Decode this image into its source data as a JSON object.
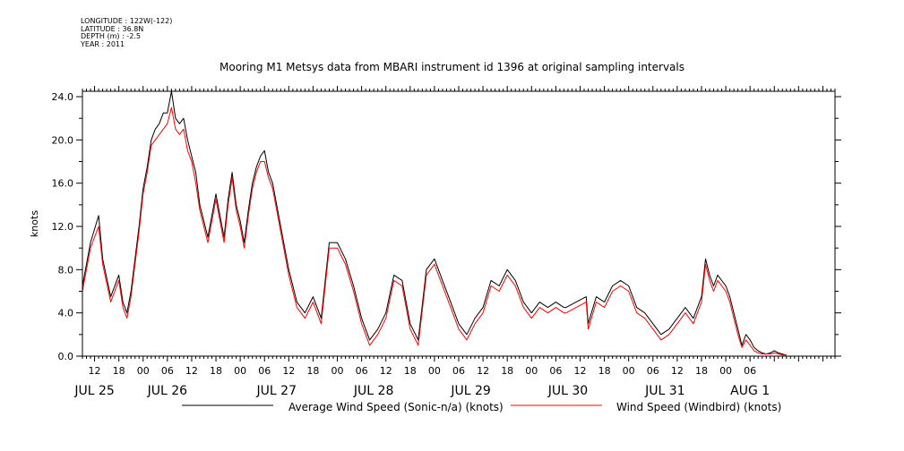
{
  "meta": {
    "longitude": "LONGITUDE : 122W(-122)",
    "latitude": "LATITUDE : 36.8N",
    "depth": "DEPTH (m) : -2.5",
    "year": "YEAR : 2011"
  },
  "colors": {
    "series_average": "#000000",
    "series_windbird": "#ff0000"
  },
  "chart_data": {
    "type": "line",
    "title": "Mooring M1 Metsys data from MBARI instrument id 1396 at original sampling intervals",
    "ylabel": "knots",
    "xlabel": "",
    "ylim": [
      0,
      24.5
    ],
    "xlim": [
      "2011-07-24T09:00",
      "2011-08-01T03:00"
    ],
    "y_ticks": [
      "0.0",
      "4.0",
      "8.0",
      "12.0",
      "16.0",
      "20.0",
      "24.0"
    ],
    "hour_ticks": [
      {
        "label": "12",
        "x": "2011-07-24T12:00"
      },
      {
        "label": "18",
        "x": "2011-07-24T18:00"
      },
      {
        "label": "00",
        "x": "2011-07-25T00:00"
      },
      {
        "label": "06",
        "x": "2011-07-25T06:00"
      },
      {
        "label": "12",
        "x": "2011-07-25T12:00"
      },
      {
        "label": "18",
        "x": "2011-07-25T18:00"
      },
      {
        "label": "00",
        "x": "2011-07-26T00:00"
      },
      {
        "label": "06",
        "x": "2011-07-26T06:00"
      },
      {
        "label": "12",
        "x": "2011-07-26T12:00"
      },
      {
        "label": "18",
        "x": "2011-07-26T18:00"
      },
      {
        "label": "00",
        "x": "2011-07-27T00:00"
      },
      {
        "label": "06",
        "x": "2011-07-27T06:00"
      },
      {
        "label": "12",
        "x": "2011-07-27T12:00"
      },
      {
        "label": "18",
        "x": "2011-07-27T18:00"
      },
      {
        "label": "00",
        "x": "2011-07-28T00:00"
      },
      {
        "label": "06",
        "x": "2011-07-28T06:00"
      },
      {
        "label": "12",
        "x": "2011-07-28T12:00"
      },
      {
        "label": "18",
        "x": "2011-07-28T18:00"
      },
      {
        "label": "00",
        "x": "2011-07-29T00:00"
      },
      {
        "label": "06",
        "x": "2011-07-29T06:00"
      },
      {
        "label": "12",
        "x": "2011-07-29T12:00"
      },
      {
        "label": "18",
        "x": "2011-07-29T18:00"
      },
      {
        "label": "00",
        "x": "2011-07-30T00:00"
      },
      {
        "label": "06",
        "x": "2011-07-30T06:00"
      },
      {
        "label": "12",
        "x": "2011-07-30T12:00"
      },
      {
        "label": "18",
        "x": "2011-07-30T18:00"
      },
      {
        "label": "00",
        "x": "2011-07-31T00:00"
      },
      {
        "label": "06",
        "x": "2011-07-31T06:00"
      }
    ],
    "date_labels": [
      {
        "label": "JUL 25",
        "x": "2011-07-24T12:00"
      },
      {
        "label": "JUL 26",
        "x": "2011-07-25T06:00"
      },
      {
        "label": "JUL 27",
        "x": "2011-07-26T09:00"
      },
      {
        "label": "JUL 28",
        "x": "2011-07-27T09:00"
      },
      {
        "label": "JUL 29",
        "x": "2011-07-28T09:00"
      },
      {
        "label": "JUL 30",
        "x": "2011-07-29T09:00"
      },
      {
        "label": "JUL 31",
        "x": "2011-07-30T09:00"
      },
      {
        "label": "AUG  1",
        "x": "2011-07-31T06:00"
      }
    ],
    "series": [
      {
        "name": "Average Wind Speed (Sonic-n/a) (knots)",
        "color": "#000000",
        "x": [
          "2011-07-24T09:00",
          "2011-07-24T11:00",
          "2011-07-24T13:00",
          "2011-07-24T14:00",
          "2011-07-24T16:00",
          "2011-07-24T18:00",
          "2011-07-24T19:00",
          "2011-07-24T20:00",
          "2011-07-24T21:00",
          "2011-07-24T22:00",
          "2011-07-24T23:00",
          "2011-07-25T00:00",
          "2011-07-25T01:00",
          "2011-07-25T02:00",
          "2011-07-25T03:00",
          "2011-07-25T04:00",
          "2011-07-25T05:00",
          "2011-07-25T06:00",
          "2011-07-25T07:00",
          "2011-07-25T08:00",
          "2011-07-25T09:00",
          "2011-07-25T10:00",
          "2011-07-25T11:00",
          "2011-07-25T12:00",
          "2011-07-25T13:00",
          "2011-07-25T14:00",
          "2011-07-25T16:00",
          "2011-07-25T18:00",
          "2011-07-25T19:00",
          "2011-07-25T20:00",
          "2011-07-25T21:00",
          "2011-07-25T22:00",
          "2011-07-25T23:00",
          "2011-07-26T00:00",
          "2011-07-26T01:00",
          "2011-07-26T02:00",
          "2011-07-26T03:00",
          "2011-07-26T04:00",
          "2011-07-26T05:00",
          "2011-07-26T06:00",
          "2011-07-26T07:00",
          "2011-07-26T08:00",
          "2011-07-26T10:00",
          "2011-07-26T12:00",
          "2011-07-26T14:00",
          "2011-07-26T16:00",
          "2011-07-26T18:00",
          "2011-07-26T20:00",
          "2011-07-26T22:00",
          "2011-07-27T00:00",
          "2011-07-27T02:00",
          "2011-07-27T04:00",
          "2011-07-27T06:00",
          "2011-07-27T08:00",
          "2011-07-27T10:00",
          "2011-07-27T12:00",
          "2011-07-27T14:00",
          "2011-07-27T16:00",
          "2011-07-27T18:00",
          "2011-07-27T20:00",
          "2011-07-27T22:00",
          "2011-07-28T00:00",
          "2011-07-28T02:00",
          "2011-07-28T04:00",
          "2011-07-28T06:00",
          "2011-07-28T08:00",
          "2011-07-28T10:00",
          "2011-07-28T12:00",
          "2011-07-28T14:00",
          "2011-07-28T16:00",
          "2011-07-28T18:00",
          "2011-07-28T20:00",
          "2011-07-28T22:00",
          "2011-07-29T00:00",
          "2011-07-29T02:00",
          "2011-07-29T04:00",
          "2011-07-29T06:00",
          "2011-07-29T08:00",
          "2011-07-29T08:30",
          "2011-07-29T13:30",
          "2011-07-29T14:00",
          "2011-07-29T16:00",
          "2011-07-29T18:00",
          "2011-07-29T20:00",
          "2011-07-29T22:00",
          "2011-07-30T00:00",
          "2011-07-30T02:00",
          "2011-07-30T04:00",
          "2011-07-30T06:00",
          "2011-07-30T08:00",
          "2011-07-30T10:00",
          "2011-07-30T12:00",
          "2011-07-30T14:00",
          "2011-07-30T16:00",
          "2011-07-30T18:00",
          "2011-07-30T19:00",
          "2011-07-30T20:00",
          "2011-07-30T21:00",
          "2011-07-30T22:00",
          "2011-07-31T00:00",
          "2011-07-31T01:00",
          "2011-07-31T02:00",
          "2011-07-31T03:00",
          "2011-07-31T04:00",
          "2011-07-31T05:00",
          "2011-07-31T06:00",
          "2011-07-31T07:00",
          "2011-07-31T08:00",
          "2011-07-31T09:00",
          "2011-07-31T10:00",
          "2011-07-31T11:00",
          "2011-07-31T12:00",
          "2011-07-31T13:00",
          "2011-07-31T14:00",
          "2011-07-31T15:00"
        ],
        "values": [
          6.5,
          10.5,
          13.0,
          9.0,
          5.5,
          7.5,
          5.0,
          4.0,
          6.0,
          9.0,
          12.0,
          15.5,
          17.5,
          20.0,
          21.0,
          21.5,
          22.5,
          22.5,
          24.5,
          22.0,
          21.5,
          22.0,
          20.0,
          18.5,
          17.0,
          14.0,
          11.0,
          15.0,
          13.0,
          11.0,
          14.5,
          17.0,
          14.0,
          12.5,
          10.5,
          13.5,
          16.0,
          17.5,
          18.5,
          19.0,
          17.0,
          16.0,
          12.0,
          8.0,
          5.0,
          4.0,
          5.5,
          3.5,
          10.5,
          10.5,
          9.0,
          6.5,
          3.5,
          1.5,
          2.5,
          4.0,
          7.5,
          7.0,
          3.0,
          1.5,
          8.0,
          9.0,
          7.0,
          5.0,
          3.0,
          2.0,
          3.5,
          4.5,
          7.0,
          6.5,
          8.0,
          7.0,
          5.0,
          4.0,
          5.0,
          4.5,
          5.0,
          4.5,
          4.5,
          5.5,
          3.0,
          5.5,
          5.0,
          6.5,
          7.0,
          6.5,
          4.5,
          4.0,
          3.0,
          2.0,
          2.5,
          3.5,
          4.5,
          3.5,
          5.5,
          9.0,
          7.5,
          6.5,
          7.5,
          6.5,
          5.5,
          4.0,
          2.5,
          1.0,
          2.0,
          1.5,
          0.8,
          0.5,
          0.3,
          0.2,
          0.3,
          0.5,
          0.3,
          0.2,
          0.1
        ]
      },
      {
        "name": "Wind Speed (Windbird) (knots)",
        "color": "#ff0000",
        "x": [
          "2011-07-24T09:00",
          "2011-07-24T11:00",
          "2011-07-24T13:00",
          "2011-07-24T14:00",
          "2011-07-24T16:00",
          "2011-07-24T18:00",
          "2011-07-24T19:00",
          "2011-07-24T20:00",
          "2011-07-24T21:00",
          "2011-07-24T22:00",
          "2011-07-24T23:00",
          "2011-07-25T00:00",
          "2011-07-25T01:00",
          "2011-07-25T02:00",
          "2011-07-25T03:00",
          "2011-07-25T04:00",
          "2011-07-25T05:00",
          "2011-07-25T06:00",
          "2011-07-25T07:00",
          "2011-07-25T08:00",
          "2011-07-25T09:00",
          "2011-07-25T10:00",
          "2011-07-25T11:00",
          "2011-07-25T12:00",
          "2011-07-25T13:00",
          "2011-07-25T14:00",
          "2011-07-25T16:00",
          "2011-07-25T18:00",
          "2011-07-25T19:00",
          "2011-07-25T20:00",
          "2011-07-25T21:00",
          "2011-07-25T22:00",
          "2011-07-25T23:00",
          "2011-07-26T00:00",
          "2011-07-26T01:00",
          "2011-07-26T02:00",
          "2011-07-26T03:00",
          "2011-07-26T04:00",
          "2011-07-26T05:00",
          "2011-07-26T06:00",
          "2011-07-26T07:00",
          "2011-07-26T08:00",
          "2011-07-26T10:00",
          "2011-07-26T12:00",
          "2011-07-26T14:00",
          "2011-07-26T16:00",
          "2011-07-26T18:00",
          "2011-07-26T20:00",
          "2011-07-26T22:00",
          "2011-07-27T00:00",
          "2011-07-27T02:00",
          "2011-07-27T04:00",
          "2011-07-27T06:00",
          "2011-07-27T08:00",
          "2011-07-27T10:00",
          "2011-07-27T12:00",
          "2011-07-27T14:00",
          "2011-07-27T16:00",
          "2011-07-27T18:00",
          "2011-07-27T20:00",
          "2011-07-27T22:00",
          "2011-07-28T00:00",
          "2011-07-28T02:00",
          "2011-07-28T04:00",
          "2011-07-28T06:00",
          "2011-07-28T08:00",
          "2011-07-28T10:00",
          "2011-07-28T12:00",
          "2011-07-28T14:00",
          "2011-07-28T16:00",
          "2011-07-28T18:00",
          "2011-07-28T20:00",
          "2011-07-28T22:00",
          "2011-07-29T00:00",
          "2011-07-29T02:00",
          "2011-07-29T04:00",
          "2011-07-29T06:00",
          "2011-07-29T08:00",
          "2011-07-29T08:30",
          "2011-07-29T13:30",
          "2011-07-29T14:00",
          "2011-07-29T16:00",
          "2011-07-29T18:00",
          "2011-07-29T20:00",
          "2011-07-29T22:00",
          "2011-07-30T00:00",
          "2011-07-30T02:00",
          "2011-07-30T04:00",
          "2011-07-30T06:00",
          "2011-07-30T08:00",
          "2011-07-30T10:00",
          "2011-07-30T12:00",
          "2011-07-30T14:00",
          "2011-07-30T16:00",
          "2011-07-30T18:00",
          "2011-07-30T19:00",
          "2011-07-30T20:00",
          "2011-07-30T21:00",
          "2011-07-30T22:00",
          "2011-07-31T00:00",
          "2011-07-31T01:00",
          "2011-07-31T02:00",
          "2011-07-31T03:00",
          "2011-07-31T04:00",
          "2011-07-31T05:00",
          "2011-07-31T06:00",
          "2011-07-31T07:00",
          "2011-07-31T08:00",
          "2011-07-31T09:00",
          "2011-07-31T10:00",
          "2011-07-31T11:00",
          "2011-07-31T12:00",
          "2011-07-31T13:00",
          "2011-07-31T14:00",
          "2011-07-31T15:00"
        ],
        "values": [
          6.0,
          10.0,
          12.0,
          8.5,
          5.0,
          7.0,
          4.5,
          3.5,
          5.5,
          8.5,
          11.5,
          15.0,
          17.0,
          19.5,
          20.0,
          20.5,
          21.0,
          21.5,
          23.0,
          21.0,
          20.5,
          21.0,
          19.0,
          18.0,
          16.0,
          13.5,
          10.5,
          14.5,
          12.5,
          10.5,
          14.0,
          16.5,
          13.5,
          12.0,
          10.0,
          13.0,
          15.5,
          17.0,
          18.0,
          18.0,
          16.5,
          15.5,
          11.5,
          7.5,
          4.5,
          3.5,
          5.0,
          3.0,
          10.0,
          10.0,
          8.5,
          6.0,
          3.0,
          1.0,
          2.0,
          3.5,
          7.0,
          6.5,
          2.5,
          1.0,
          7.5,
          8.5,
          6.5,
          4.5,
          2.5,
          1.5,
          3.0,
          4.0,
          6.5,
          6.0,
          7.5,
          6.5,
          4.5,
          3.5,
          4.5,
          4.0,
          4.5,
          4.0,
          4.0,
          5.0,
          2.5,
          5.0,
          4.5,
          6.0,
          6.5,
          6.0,
          4.0,
          3.5,
          2.5,
          1.5,
          2.0,
          3.0,
          4.0,
          3.0,
          5.0,
          8.5,
          7.0,
          6.0,
          7.0,
          6.0,
          5.0,
          3.5,
          2.0,
          0.8,
          1.5,
          1.0,
          0.5,
          0.3,
          0.2,
          0.2,
          0.2,
          0.3,
          0.2,
          0.1,
          0.1
        ]
      }
    ]
  }
}
